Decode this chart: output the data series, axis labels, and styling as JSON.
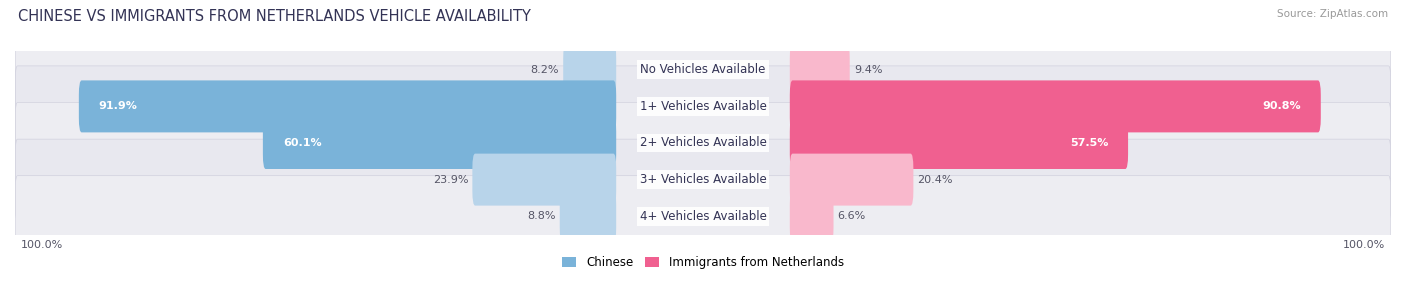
{
  "title": "CHINESE VS IMMIGRANTS FROM NETHERLANDS VEHICLE AVAILABILITY",
  "source": "Source: ZipAtlas.com",
  "categories": [
    "No Vehicles Available",
    "1+ Vehicles Available",
    "2+ Vehicles Available",
    "3+ Vehicles Available",
    "4+ Vehicles Available"
  ],
  "chinese_values": [
    8.2,
    91.9,
    60.1,
    23.9,
    8.8
  ],
  "netherlands_values": [
    9.4,
    90.8,
    57.5,
    20.4,
    6.6
  ],
  "chinese_color_strong": "#7ab3d9",
  "chinese_color_light": "#b8d4ea",
  "netherlands_color_strong": "#f06090",
  "netherlands_color_light": "#f9b8cc",
  "max_value": 100.0,
  "bar_height": 0.62,
  "fig_width": 14.06,
  "fig_height": 2.86,
  "title_fontsize": 10.5,
  "label_fontsize": 8.5,
  "value_fontsize": 8.0,
  "legend_fontsize": 8.5,
  "chinese_label": "Chinese",
  "netherlands_label": "Immigrants from Netherlands"
}
